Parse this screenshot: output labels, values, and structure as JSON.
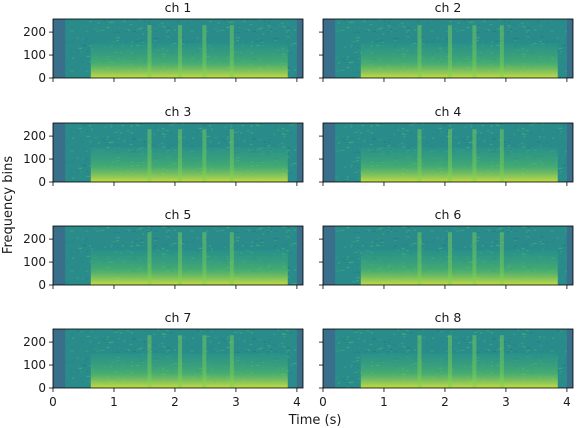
{
  "chart_data": {
    "type": "heatmap",
    "subtype": "spectrogram-grid",
    "grid": {
      "rows": 4,
      "cols": 2
    },
    "xlabel": "Time (s)",
    "ylabel": "Frequency bins",
    "xlim": [
      0,
      4.1
    ],
    "ylim": [
      0,
      257
    ],
    "xticks": [
      0,
      1,
      2,
      3,
      4
    ],
    "yticks": [
      0,
      100,
      200
    ],
    "colormap": "viridis",
    "panels": [
      {
        "title": "ch 1"
      },
      {
        "title": "ch 2"
      },
      {
        "title": "ch 3"
      },
      {
        "title": "ch 4"
      },
      {
        "title": "ch 5"
      },
      {
        "title": "ch 6"
      },
      {
        "title": "ch 7"
      },
      {
        "title": "ch 8"
      }
    ],
    "background_color": "#2a8c8a",
    "edge_color": "#3a6f8c",
    "highlight_color": "#d7e43a"
  }
}
